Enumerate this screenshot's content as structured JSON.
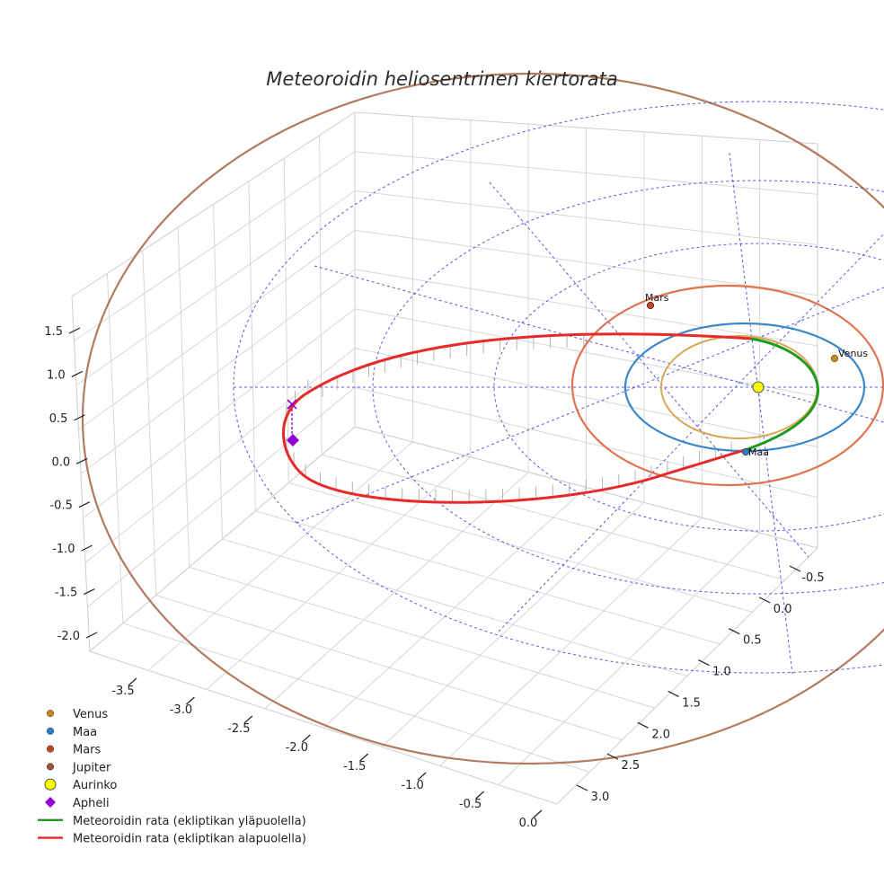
{
  "chart_data": {
    "type": "scatter3d",
    "title": "Meteoroidin heliosentrinen kiertorata",
    "axes": {
      "x": {
        "ticks": [
          "-3.5",
          "-3.0",
          "-2.5",
          "-2.0",
          "-1.5",
          "-1.0",
          "-0.5",
          "0.0"
        ],
        "range": [
          -3.8,
          0.2
        ]
      },
      "y": {
        "ticks": [
          "-0.5",
          "0.0",
          "0.5",
          "1.0",
          "1.5",
          "2.0",
          "2.5",
          "3.0"
        ],
        "range": [
          -1.0,
          3.3
        ]
      },
      "z": {
        "ticks": [
          "1.5",
          "1.0",
          "0.5",
          "0.0",
          "-0.5",
          "-1.0",
          "-1.5",
          "-2.0"
        ],
        "range": [
          -2.2,
          1.7
        ]
      }
    },
    "planets": [
      {
        "name": "Venus",
        "color": "#c8891a",
        "radius_au": 0.72,
        "label": "Venus"
      },
      {
        "name": "Maa",
        "color": "#2f7fc1",
        "radius_au": 1.0,
        "label": "Maa"
      },
      {
        "name": "Mars",
        "color": "#c0441e",
        "radius_au": 1.52,
        "label": "Mars"
      },
      {
        "name": "Jupiter",
        "color": "#a0522d",
        "radius_au": 5.2
      }
    ],
    "sun": {
      "name": "Aurinko",
      "color": "#ffff00"
    },
    "aphelion": {
      "name": "Apheli",
      "color": "#9400d3"
    },
    "trajectory": [
      {
        "name": "Meteoroidin rata (ekliptikan yläpuolella)",
        "color": "#1e9a1e"
      },
      {
        "name": "Meteoroidin rata (ekliptikan alapuolella)",
        "color": "#e8292a"
      }
    ]
  },
  "legend": [
    {
      "label": "Venus",
      "kind": "dot",
      "color": "#c8891a"
    },
    {
      "label": "Maa",
      "kind": "dot",
      "color": "#2f7fc1"
    },
    {
      "label": "Mars",
      "kind": "dot",
      "color": "#c0441e"
    },
    {
      "label": "Jupiter",
      "kind": "dot",
      "color": "#a0522d"
    },
    {
      "label": "Aurinko",
      "kind": "bigdot",
      "color": "#ffff00"
    },
    {
      "label": "Apheli",
      "kind": "diamond",
      "color": "#9400d3"
    },
    {
      "label": "Meteoroidin rata (ekliptikan yläpuolella)",
      "kind": "line",
      "color": "#1e9a1e"
    },
    {
      "label": "Meteoroidin rata (ekliptikan alapuolella)",
      "kind": "line",
      "color": "#e8292a"
    }
  ]
}
